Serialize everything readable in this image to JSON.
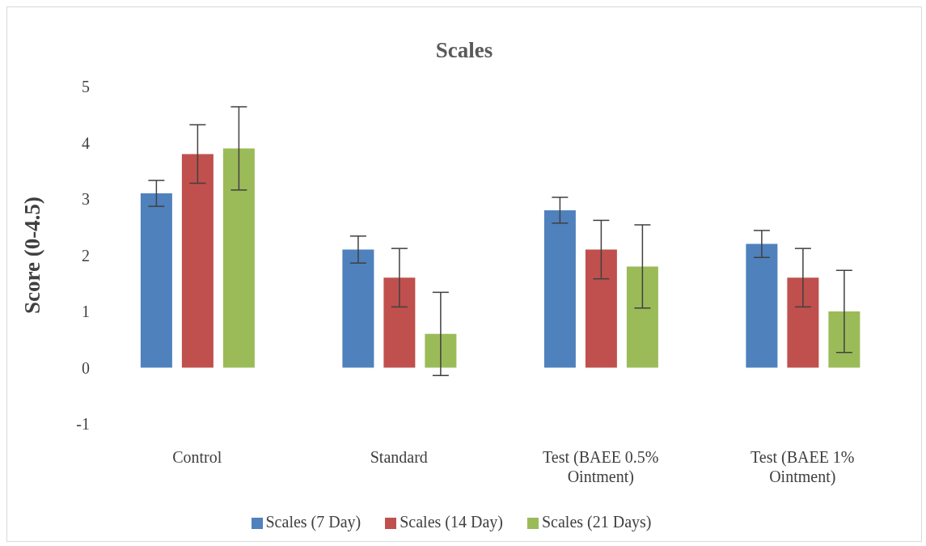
{
  "chart_data": {
    "type": "bar",
    "title": "Scales",
    "ylabel": "Score (0-4.5)",
    "categories": [
      "Control",
      "Standard",
      "Test (BAEE 0.5% Ointment)",
      "Test (BAEE 1% Ointment)"
    ],
    "series": [
      {
        "name": "Scales (7 Day)",
        "color": "#4f81bd",
        "values": [
          3.1,
          2.1,
          2.8,
          2.2
        ],
        "errors": [
          0.23,
          0.24,
          0.23,
          0.24
        ]
      },
      {
        "name": "Scales (14 Day)",
        "color": "#c0504d",
        "values": [
          3.8,
          1.6,
          2.1,
          1.6
        ],
        "errors": [
          0.52,
          0.52,
          0.52,
          0.52
        ]
      },
      {
        "name": "Scales (21 Days)",
        "color": "#9bbb59",
        "values": [
          3.9,
          0.6,
          1.8,
          1.0
        ],
        "errors": [
          0.74,
          0.74,
          0.74,
          0.73
        ]
      }
    ],
    "ylim": [
      -1,
      5
    ],
    "yticks": [
      -1,
      0,
      1,
      2,
      3,
      4,
      5
    ],
    "grid": false,
    "legend": "bottom"
  }
}
